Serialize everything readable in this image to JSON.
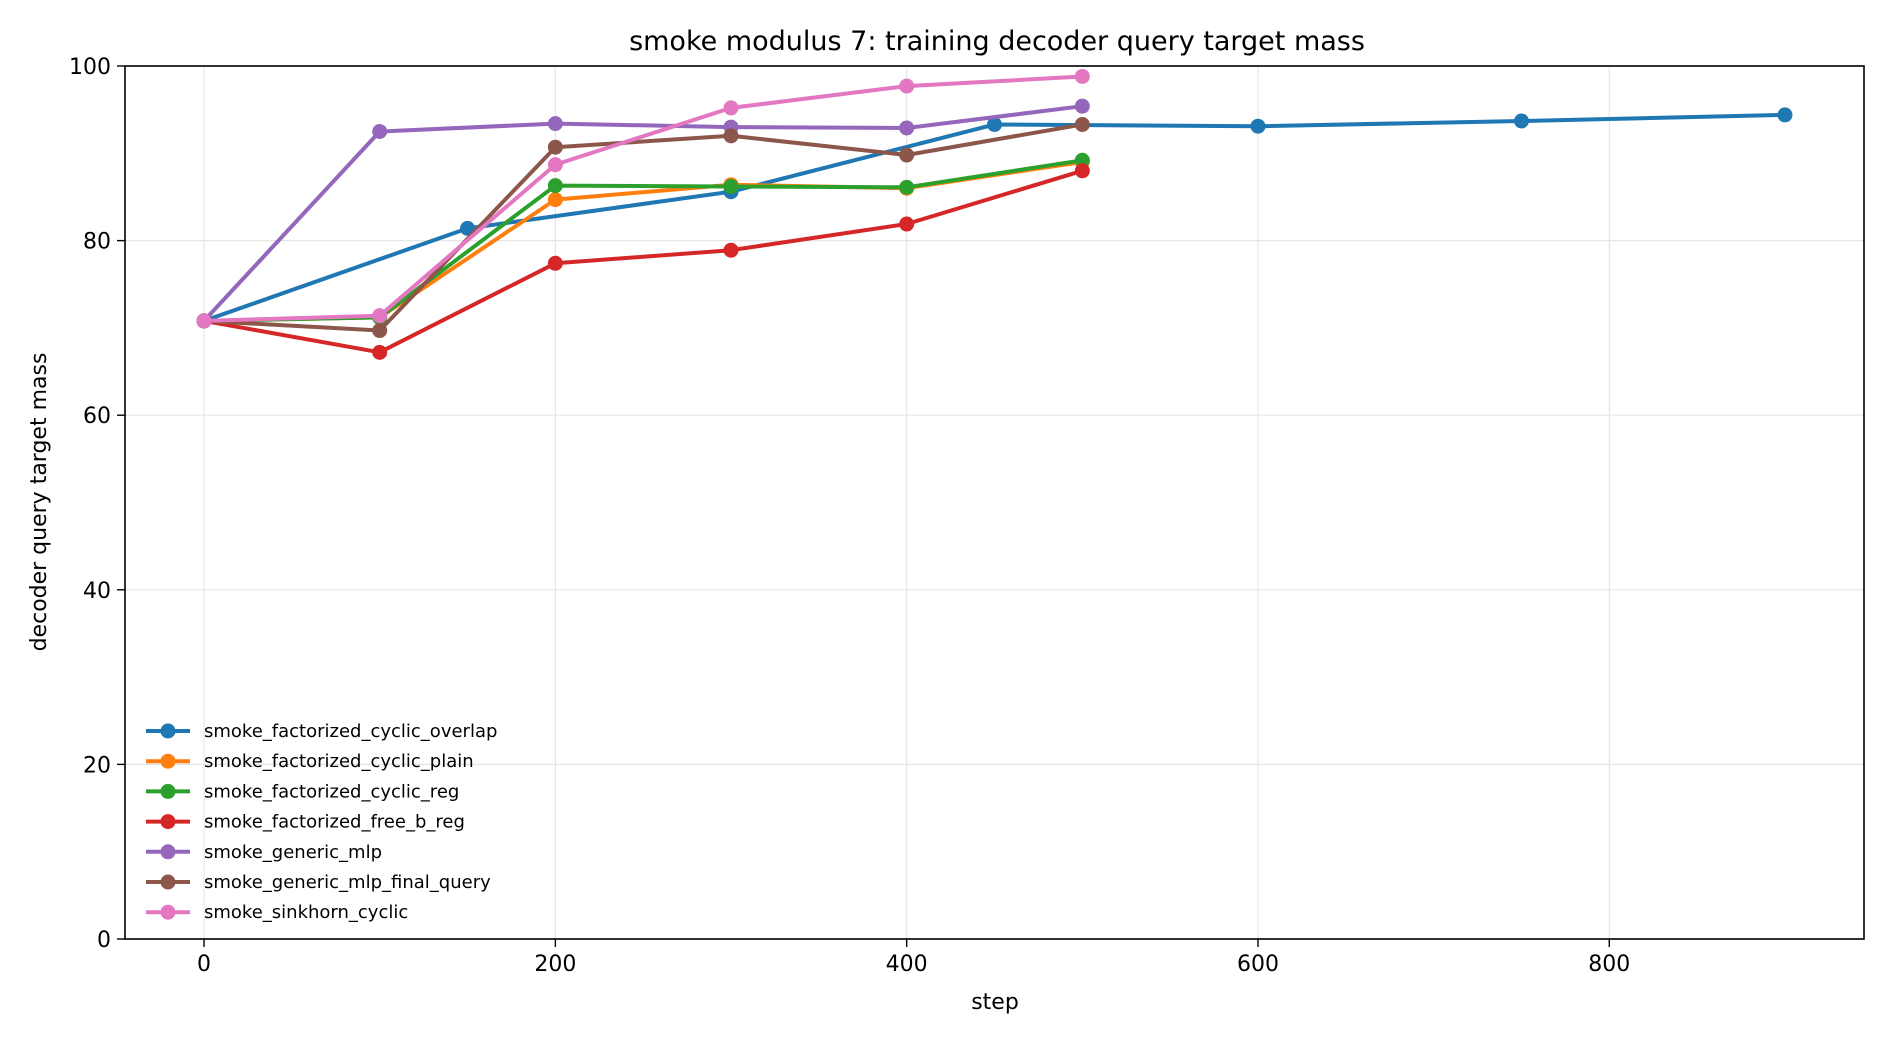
{
  "chart_data": {
    "type": "line",
    "title": "smoke modulus 7: training decoder query target mass",
    "xlabel": "step",
    "ylabel": "decoder query target mass",
    "xlim": [
      -45,
      945
    ],
    "ylim": [
      0,
      100
    ],
    "xticks": [
      0,
      200,
      400,
      600,
      800
    ],
    "yticks": [
      0,
      20,
      40,
      60,
      80,
      100
    ],
    "grid": true,
    "legend_position": "lower-left",
    "series": [
      {
        "name": "smoke_factorized_cyclic_overlap",
        "color": "#1f77b4",
        "x": [
          0,
          150,
          300,
          450,
          600,
          750,
          900
        ],
        "y": [
          70.8,
          81.4,
          85.6,
          93.3,
          93.1,
          93.7,
          94.4
        ]
      },
      {
        "name": "smoke_factorized_cyclic_plain",
        "color": "#ff7f0e",
        "x": [
          0,
          100,
          200,
          300,
          400,
          500
        ],
        "y": [
          70.8,
          71.2,
          84.7,
          86.4,
          86.0,
          89.0
        ]
      },
      {
        "name": "smoke_factorized_cyclic_reg",
        "color": "#2ca02c",
        "x": [
          0,
          100,
          200,
          300,
          400,
          500
        ],
        "y": [
          70.8,
          71.2,
          86.3,
          86.2,
          86.1,
          89.2
        ]
      },
      {
        "name": "smoke_factorized_free_b_reg",
        "color": "#d62728",
        "x": [
          0,
          100,
          200,
          300,
          400,
          500
        ],
        "y": [
          70.8,
          67.2,
          77.4,
          78.9,
          81.9,
          88.0
        ]
      },
      {
        "name": "smoke_generic_mlp",
        "color": "#9467bd",
        "x": [
          0,
          100,
          200,
          300,
          400,
          500
        ],
        "y": [
          70.8,
          92.5,
          93.4,
          93.0,
          92.9,
          95.4
        ]
      },
      {
        "name": "smoke_generic_mlp_final_query",
        "color": "#8c564b",
        "x": [
          0,
          100,
          200,
          300,
          400,
          500
        ],
        "y": [
          70.8,
          69.7,
          90.7,
          92.0,
          89.8,
          93.3
        ]
      },
      {
        "name": "smoke_sinkhorn_cyclic",
        "color": "#e377c2",
        "x": [
          0,
          100,
          200,
          300,
          400,
          500
        ],
        "y": [
          70.8,
          71.4,
          88.7,
          95.2,
          97.7,
          98.8
        ]
      }
    ]
  }
}
